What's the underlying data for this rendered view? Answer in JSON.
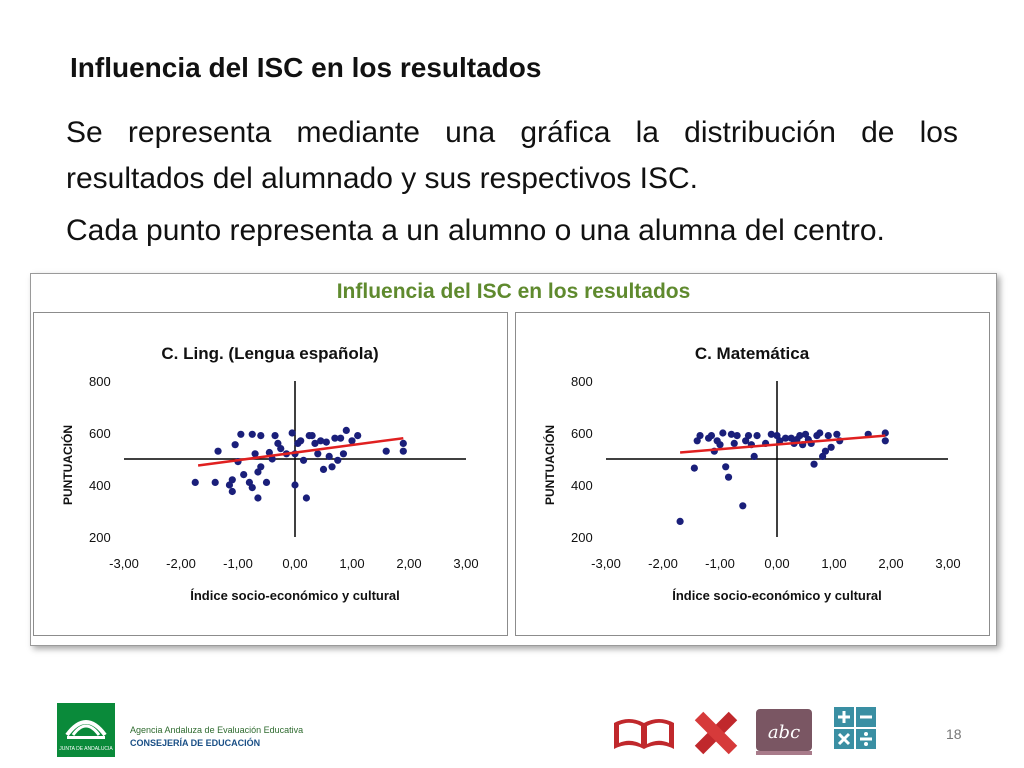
{
  "slide": {
    "title": "Influencia del ISC en los resultados",
    "paragraph1": "Se representa mediante una gráfica la distribución de los resultados del alumnado y sus respectivos ISC.",
    "paragraph2": "Cada punto representa a un alumno o una alumna del centro.",
    "page_number": "18"
  },
  "figure": {
    "title": "Influencia del ISC en los resultados"
  },
  "footer": {
    "agency": "Agencia Andaluza de Evaluación Educativa",
    "ministry": "CONSEJERÍA DE EDUCACIÓN",
    "logo_text": "JUNTA DE ANDALUCIA"
  },
  "colors": {
    "points": "#1a1f7a",
    "trend": "#e02020",
    "figure_title": "#5f8a2e"
  },
  "icons": [
    "book-icon",
    "pencil-ruler-icon",
    "abc-icon",
    "calculator-icon"
  ],
  "chart_data": [
    {
      "type": "scatter",
      "title": "C. Ling. (Lengua española)",
      "xlabel": "Índice socio-económico y cultural",
      "ylabel": "PUNTUACIÓN",
      "xlim": [
        -3,
        3
      ],
      "ylim": [
        200,
        800
      ],
      "xticks": [
        "-3,00",
        "-2,00",
        "-1,00",
        "0,00",
        "1,00",
        "2,00",
        "3,00"
      ],
      "yticks": [
        "200",
        "400",
        "600",
        "800"
      ],
      "trend": {
        "x": [
          -1.7,
          1.9
        ],
        "y": [
          475,
          580
        ]
      },
      "points": [
        [
          -1.75,
          410
        ],
        [
          -1.4,
          410
        ],
        [
          -1.35,
          530
        ],
        [
          -1.15,
          400
        ],
        [
          -1.1,
          375
        ],
        [
          -1.1,
          420
        ],
        [
          -1.05,
          555
        ],
        [
          -1.0,
          490
        ],
        [
          -0.95,
          595
        ],
        [
          -0.9,
          440
        ],
        [
          -0.8,
          410
        ],
        [
          -0.75,
          390
        ],
        [
          -0.75,
          595
        ],
        [
          -0.7,
          520
        ],
        [
          -0.65,
          350
        ],
        [
          -0.65,
          450
        ],
        [
          -0.6,
          470
        ],
        [
          -0.6,
          590
        ],
        [
          -0.5,
          410
        ],
        [
          -0.45,
          525
        ],
        [
          -0.4,
          500
        ],
        [
          -0.35,
          590
        ],
        [
          -0.3,
          560
        ],
        [
          -0.25,
          540
        ],
        [
          -0.15,
          520
        ],
        [
          -0.05,
          600
        ],
        [
          0.0,
          520
        ],
        [
          0.0,
          400
        ],
        [
          0.05,
          560
        ],
        [
          0.1,
          570
        ],
        [
          0.15,
          495
        ],
        [
          0.2,
          350
        ],
        [
          0.25,
          590
        ],
        [
          0.3,
          590
        ],
        [
          0.35,
          560
        ],
        [
          0.4,
          520
        ],
        [
          0.45,
          570
        ],
        [
          0.5,
          460
        ],
        [
          0.55,
          565
        ],
        [
          0.6,
          510
        ],
        [
          0.65,
          470
        ],
        [
          0.7,
          580
        ],
        [
          0.75,
          495
        ],
        [
          0.8,
          580
        ],
        [
          0.85,
          520
        ],
        [
          0.9,
          610
        ],
        [
          1.0,
          570
        ],
        [
          1.1,
          590
        ],
        [
          1.6,
          530
        ],
        [
          1.9,
          560
        ],
        [
          1.9,
          530
        ]
      ]
    },
    {
      "type": "scatter",
      "title": "C. Matemática",
      "xlabel": "Índice socio-económico y cultural",
      "ylabel": "PUNTUACIÓN",
      "xlim": [
        -3,
        3
      ],
      "ylim": [
        200,
        800
      ],
      "xticks": [
        "-3,00",
        "-2,00",
        "-1,00",
        "0,00",
        "1,00",
        "2,00",
        "3,00"
      ],
      "yticks": [
        "200",
        "400",
        "600",
        "800"
      ],
      "trend": {
        "x": [
          -1.7,
          1.9
        ],
        "y": [
          525,
          590
        ]
      },
      "points": [
        [
          -1.7,
          260
        ],
        [
          -1.45,
          465
        ],
        [
          -1.4,
          570
        ],
        [
          -1.35,
          590
        ],
        [
          -1.2,
          580
        ],
        [
          -1.15,
          590
        ],
        [
          -1.1,
          530
        ],
        [
          -1.05,
          570
        ],
        [
          -1.0,
          555
        ],
        [
          -0.95,
          600
        ],
        [
          -0.9,
          470
        ],
        [
          -0.85,
          430
        ],
        [
          -0.8,
          595
        ],
        [
          -0.75,
          560
        ],
        [
          -0.7,
          590
        ],
        [
          -0.6,
          320
        ],
        [
          -0.55,
          570
        ],
        [
          -0.5,
          590
        ],
        [
          -0.45,
          555
        ],
        [
          -0.4,
          510
        ],
        [
          -0.35,
          590
        ],
        [
          -0.2,
          560
        ],
        [
          -0.1,
          595
        ],
        [
          0.0,
          590
        ],
        [
          0.05,
          570
        ],
        [
          0.15,
          580
        ],
        [
          0.25,
          580
        ],
        [
          0.3,
          560
        ],
        [
          0.35,
          575
        ],
        [
          0.4,
          590
        ],
        [
          0.45,
          555
        ],
        [
          0.5,
          595
        ],
        [
          0.55,
          575
        ],
        [
          0.6,
          560
        ],
        [
          0.65,
          480
        ],
        [
          0.7,
          590
        ],
        [
          0.75,
          600
        ],
        [
          0.8,
          510
        ],
        [
          0.85,
          530
        ],
        [
          0.9,
          590
        ],
        [
          0.95,
          545
        ],
        [
          1.05,
          595
        ],
        [
          1.1,
          570
        ],
        [
          1.6,
          595
        ],
        [
          1.9,
          570
        ],
        [
          1.9,
          600
        ]
      ]
    }
  ]
}
